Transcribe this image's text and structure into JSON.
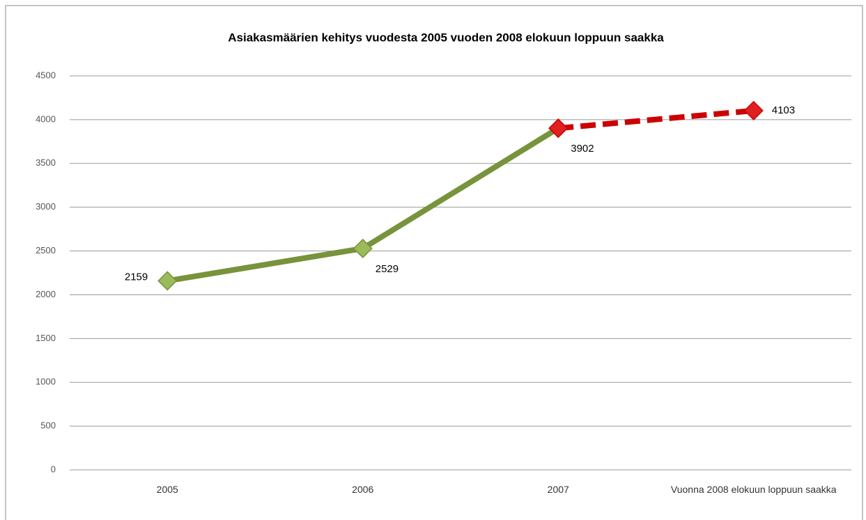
{
  "chart_data": {
    "type": "line",
    "title": "Asiakasmäärien kehitys vuodesta 2005 vuoden 2008 elokuun loppuun saakka",
    "categories": [
      "2005",
      "2006",
      "2007",
      "Vuonna 2008 elokuun loppuun saakka"
    ],
    "series": [
      {
        "color": "#77933c",
        "marker_color": "#9bbb59",
        "dashed": false,
        "values": [
          2159,
          2529,
          3902,
          null
        ]
      },
      {
        "color": "#cc0000",
        "marker_color": "#e02020",
        "dashed": true,
        "values": [
          null,
          null,
          3902,
          4103
        ]
      }
    ],
    "ylim": [
      0,
      4500
    ],
    "yticks": [
      0,
      500,
      1000,
      1500,
      2000,
      2500,
      3000,
      3500,
      4000,
      4500
    ],
    "grid": true
  }
}
